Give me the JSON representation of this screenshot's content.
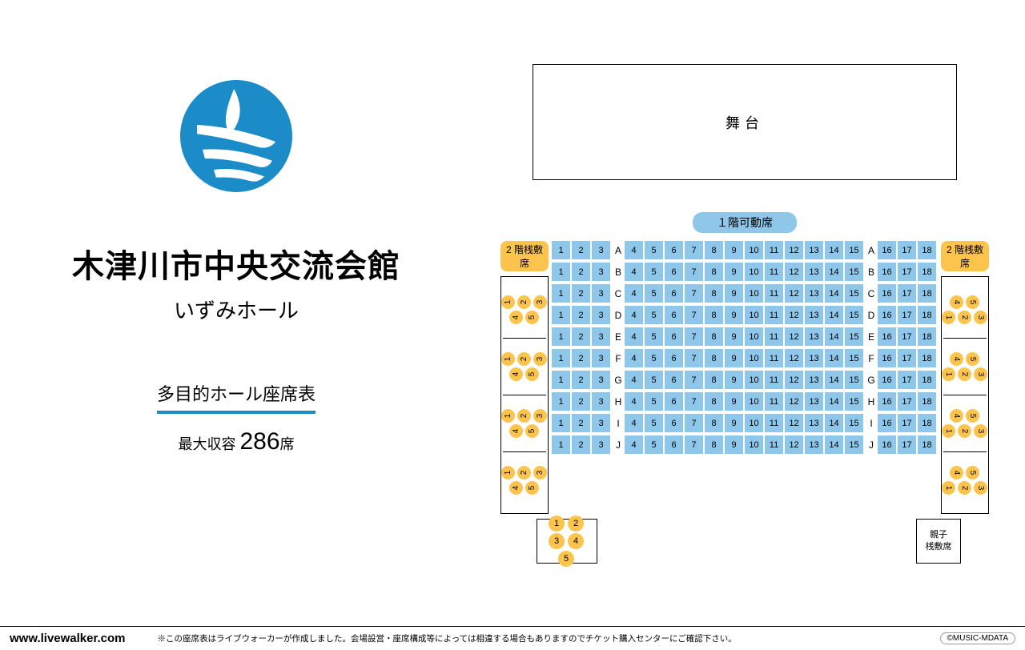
{
  "colors": {
    "seat_blue": "#8ec7ea",
    "seat_yellow": "#fcc44d",
    "accent": "#1c8cc9",
    "background": "#ffffff",
    "text": "#000000",
    "border": "#000000"
  },
  "left": {
    "title": "木津川市中央交流会館",
    "subtitle": "いずみホール",
    "chart_type": "多目的ホール座席表",
    "capacity_prefix": "最大収容 ",
    "capacity_number": "286",
    "capacity_suffix": "席"
  },
  "stage_label": "舞台",
  "section_1f_label": "１階可動席",
  "box_2f_label": "2 階桟敷席",
  "oyako_label": "親子\n桟敷席",
  "main_rows": {
    "letters": [
      "A",
      "B",
      "C",
      "D",
      "E",
      "F",
      "G",
      "H",
      "I",
      "J"
    ],
    "left_block": [
      1,
      2,
      3
    ],
    "center_block": [
      4,
      5,
      6,
      7,
      8,
      9,
      10,
      11,
      12,
      13,
      14,
      15
    ],
    "right_block": [
      16,
      17,
      18
    ]
  },
  "side_box_groups": 4,
  "side_box_seats": [
    1,
    2,
    3,
    4,
    5
  ],
  "bottom_box_seats": [
    1,
    2,
    3,
    4,
    5
  ],
  "footer": {
    "site": "www.livewalker.com",
    "note": "※この座席表はライブウォーカーが作成しました。会場設営・座席構成等によっては相違する場合もありますのでチケット購入センターにご確認下さい。",
    "copyright": "©MUSIC-MDATA"
  }
}
